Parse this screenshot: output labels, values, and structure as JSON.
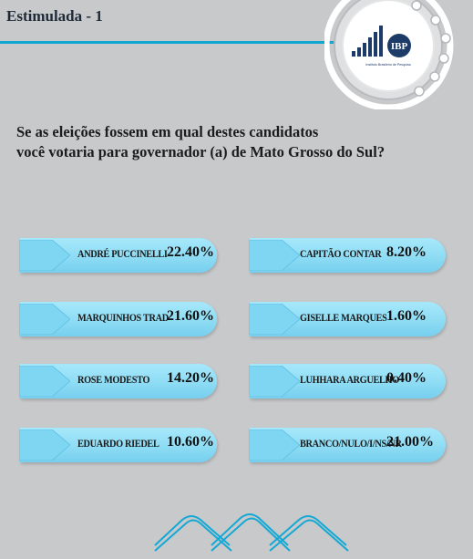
{
  "header": {
    "title": "Estimulada - 1"
  },
  "logo": {
    "acronym": "IBP",
    "tagline": "Instituto Brasileiro de Pesquisa"
  },
  "question": {
    "line1": "Se as eleições fossem em qual destes candidatos",
    "line2": "você votaria para governador (a) de Mato Grosso do Sul?"
  },
  "colors": {
    "accent": "#12a7d2",
    "bar_fill": "#8edcf4",
    "background": "#c8c9cb"
  },
  "chart_data": {
    "type": "bar",
    "categories": [
      "ANDRÉ PUCCINELLI",
      "CAPITÃO CONTAR",
      "MARQUINHOS TRAD",
      "GISELLE MARQUES",
      "ROSE MODESTO",
      "LUHHARA ARGUELHO",
      "EDUARDO RIEDEL",
      "BRANCO/NULO/I/NS/NR"
    ],
    "values": [
      22.4,
      8.2,
      21.6,
      1.6,
      14.2,
      0.4,
      10.6,
      21.0
    ],
    "value_labels": [
      "22.40%",
      "8.20%",
      "21.60%",
      "1.60%",
      "14.20%",
      "0.40%",
      "10.60%",
      "21.00%"
    ],
    "unit": "%"
  }
}
